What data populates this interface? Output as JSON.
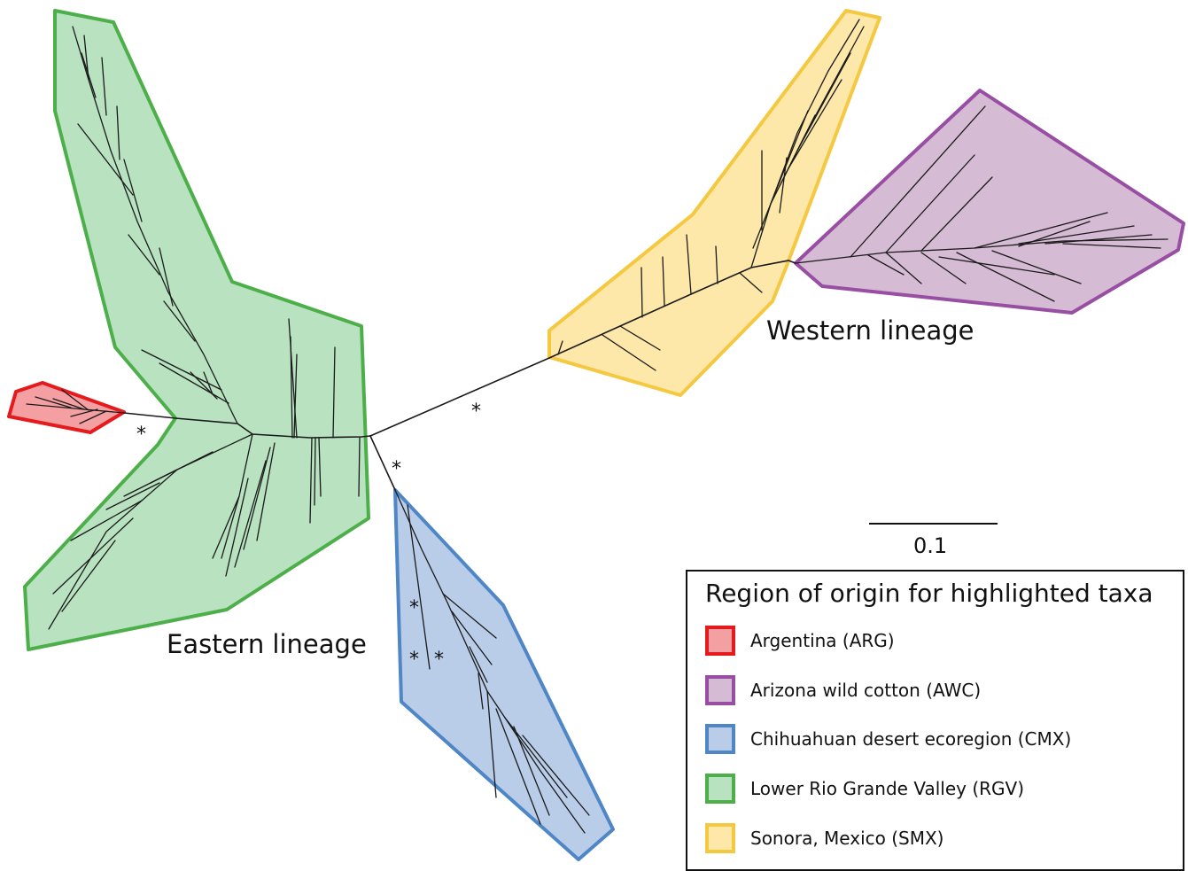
{
  "diagram": {
    "lineages": {
      "eastern": "Eastern lineage",
      "western": "Western lineage"
    },
    "scale_bar_label": "0.1",
    "support_marker": "*",
    "legend": {
      "title": "Region of origin for highlighted taxa",
      "items": [
        {
          "label": "Argentina (ARG)",
          "fill": "#f4a0a3",
          "stroke": "#e41a1c"
        },
        {
          "label": "Arizona wild cotton (AWC)",
          "fill": "#d6bbd4",
          "stroke": "#984ea3"
        },
        {
          "label": "Chihuahuan desert ecoregion (CMX)",
          "fill": "#b9cde9",
          "stroke": "#4f86c6"
        },
        {
          "label": "Lower Rio Grande Valley (RGV)",
          "fill": "#b8e2c0",
          "stroke": "#4daf4a"
        },
        {
          "label": "Sonora, Mexico (SMX)",
          "fill": "#fde8a9",
          "stroke": "#f5c842"
        }
      ]
    }
  }
}
